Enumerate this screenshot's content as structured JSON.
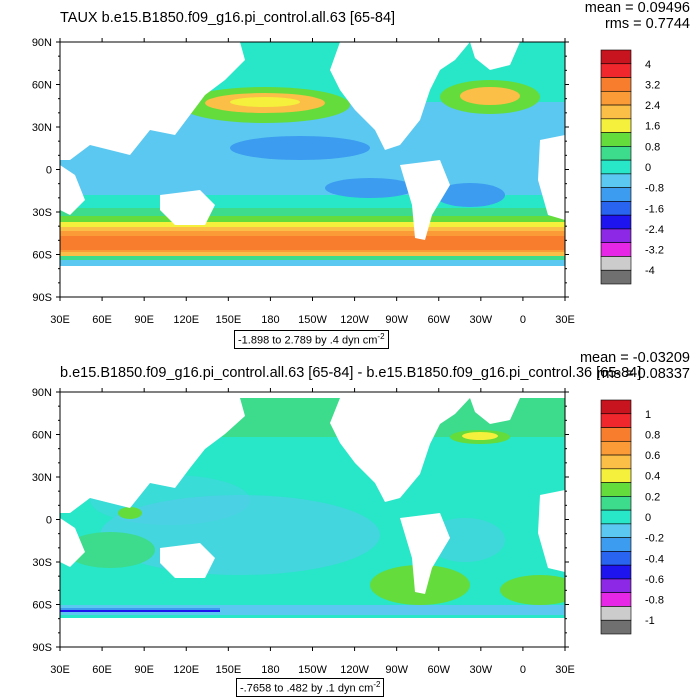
{
  "panels": [
    {
      "title": "TAUX b.e15.B1850.f09_g16.pi_control.all.63 [65-84]",
      "mean_text": "mean = 0.09496",
      "rms_text": "rms = 0.7744",
      "range_text": "-1.898 to 2.789 by .4 dyn cm",
      "range_unit_sup": "-2",
      "levels": [
        "4",
        "3.2",
        "2.4",
        "1.6",
        "0.8",
        "0",
        "-0.8",
        "-1.6",
        "-2.4",
        "-3.2",
        "-4"
      ],
      "colors": [
        "#c8141e",
        "#f0282d",
        "#f87d2d",
        "#fa9b37",
        "#fbbe46",
        "#f5f03c",
        "#64dc3c",
        "#3cdc8c",
        "#28e6c8",
        "#5ac8f0",
        "#3c9cf0",
        "#2864f0",
        "#1e14f0",
        "#8c28e6",
        "#e628e6",
        "#cccccc",
        "#707070"
      ]
    },
    {
      "title": "b.e15.B1850.f09_g16.pi_control.all.63 [65-84] - b.e15.B1850.f09_g16.pi_control.36 [65-84]",
      "mean_text": "mean = -0.03209",
      "rms_text": "rms = 0.08337",
      "range_text": "-.7658 to .482 by .1 dyn cm",
      "range_unit_sup": "-2",
      "levels": [
        "1",
        "0.8",
        "0.6",
        "0.4",
        "0.2",
        "0",
        "-0.2",
        "-0.4",
        "-0.6",
        "-0.8",
        "-1"
      ],
      "colors": [
        "#c8141e",
        "#f0282d",
        "#f87d2d",
        "#fa9b37",
        "#fbbe46",
        "#f5f03c",
        "#64dc3c",
        "#3cdc8c",
        "#28e6c8",
        "#5ac8f0",
        "#3c9cf0",
        "#2864f0",
        "#1e14f0",
        "#8c28e6",
        "#e628e6",
        "#cccccc",
        "#707070"
      ]
    }
  ],
  "lat_labels": [
    "90N",
    "60N",
    "30N",
    "0",
    "30S",
    "60S",
    "90S"
  ],
  "lon_labels": [
    "30E",
    "60E",
    "90E",
    "120E",
    "150E",
    "180",
    "150W",
    "120W",
    "90W",
    "60W",
    "30W",
    "0",
    "30E"
  ]
}
